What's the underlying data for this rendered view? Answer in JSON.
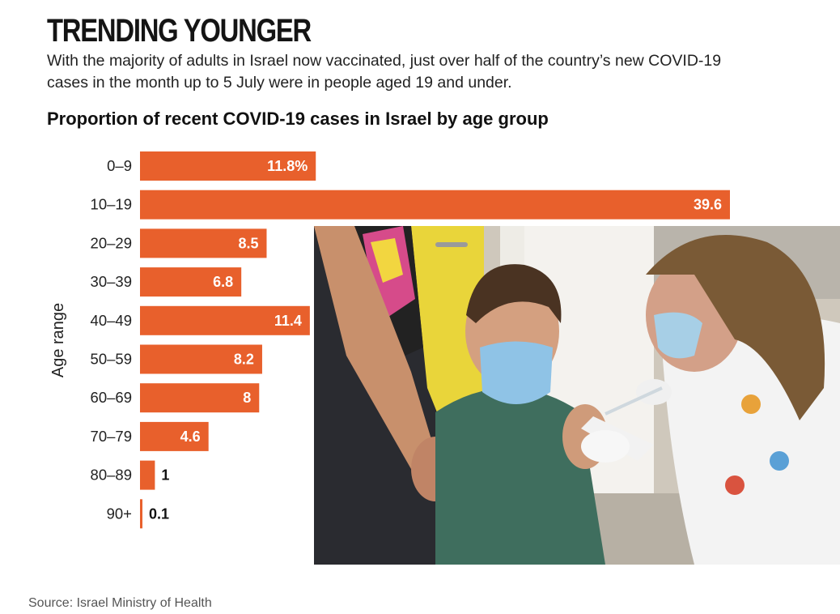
{
  "headline": "TRENDING YOUNGER",
  "standfirst": "With the majority of adults in Israel now vaccinated, just over half of the country’s new COVID-19 cases in the month up to 5 July were in people aged 19 and under.",
  "chart_data": {
    "type": "bar",
    "orientation": "horizontal",
    "title": "Proportion of recent COVID-19 cases in Israel by age group",
    "ylabel": "Age range",
    "xlabel": "",
    "categories": [
      "0–9",
      "10–19",
      "20–29",
      "30–39",
      "40–49",
      "50–59",
      "60–69",
      "70–79",
      "80–89",
      "90+"
    ],
    "values": [
      11.8,
      39.6,
      8.5,
      6.8,
      11.4,
      8.2,
      8,
      4.6,
      1,
      0.1
    ],
    "data_labels": [
      "11.8%",
      "39.6",
      "8.5",
      "6.8",
      "11.4",
      "8.2",
      "8",
      "4.6",
      "1",
      "0.1"
    ],
    "xlim": [
      0,
      40
    ],
    "grid": false,
    "legend": "none",
    "bar_color": "#e8602c"
  },
  "photo": {
    "description_icon": "vaccination-photo"
  },
  "source": "Source: Israel Ministry of Health"
}
